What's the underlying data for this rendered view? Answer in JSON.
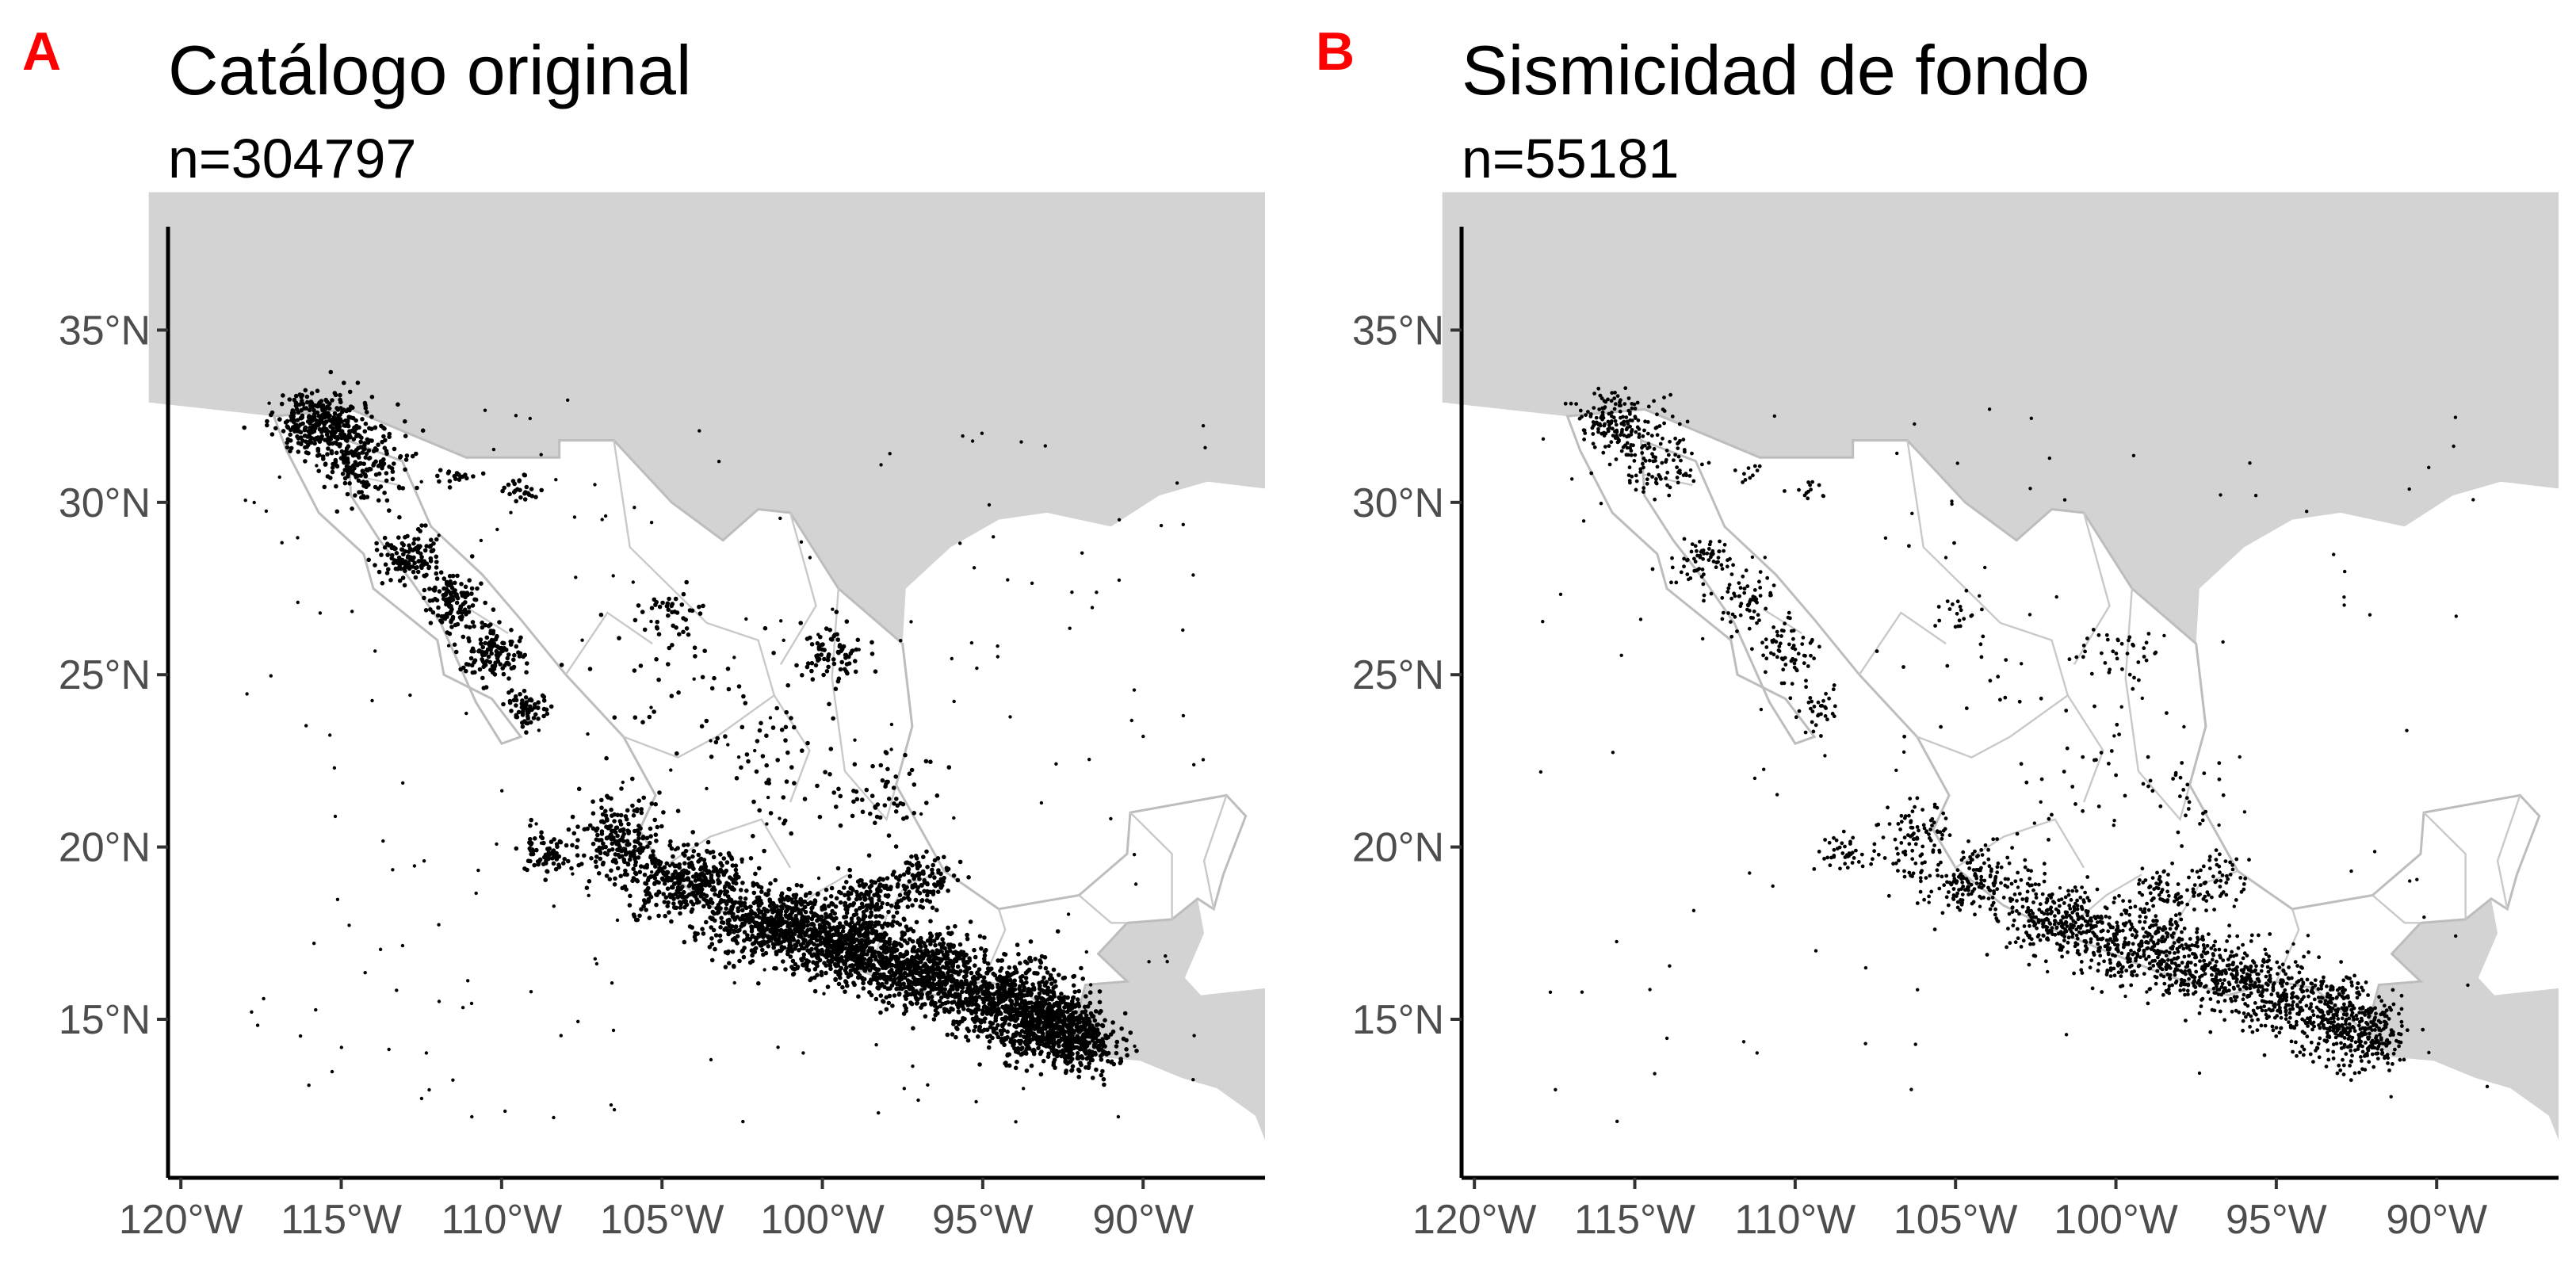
{
  "panels": [
    {
      "tag": "A",
      "title": "Catálogo original",
      "subtitle": "n=304797"
    },
    {
      "tag": "B",
      "title": "Sismicidad de fondo",
      "subtitle": "n=55181"
    }
  ],
  "colors": {
    "tag": "#ff0000",
    "other_land": "#d3d3d3",
    "mexico_land": "#ffffff",
    "borders": "#bdbdbd",
    "events": "#000000",
    "tick_labels": "#4d4d4d"
  },
  "axes": {
    "x_ticks": [
      {
        "value": -120,
        "label": "120°W"
      },
      {
        "value": -115,
        "label": "115°W"
      },
      {
        "value": -110,
        "label": "110°W"
      },
      {
        "value": -105,
        "label": "105°W"
      },
      {
        "value": -100,
        "label": "100°W"
      },
      {
        "value": -95,
        "label": "95°W"
      },
      {
        "value": -90,
        "label": "90°W"
      }
    ],
    "y_ticks": [
      {
        "value": 15,
        "label": "15°N"
      },
      {
        "value": 20,
        "label": "20°N"
      },
      {
        "value": 25,
        "label": "25°N"
      },
      {
        "value": 30,
        "label": "30°N"
      },
      {
        "value": 35,
        "label": "35°N"
      }
    ],
    "lon_range": [
      -120.4,
      -86.2
    ],
    "lat_range": [
      10.4,
      38.0
    ]
  }
}
